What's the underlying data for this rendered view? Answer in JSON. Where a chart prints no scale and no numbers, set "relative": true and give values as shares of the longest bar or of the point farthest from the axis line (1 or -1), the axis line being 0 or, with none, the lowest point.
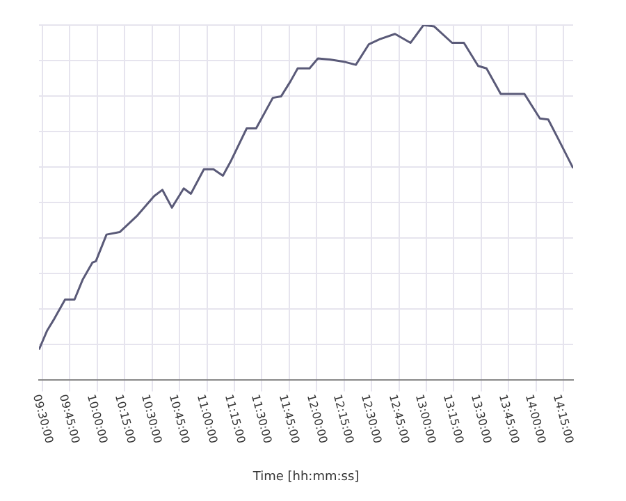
{
  "chart_data": {
    "type": "line",
    "xlabel": "Time [hh:mm:ss]",
    "relative": true,
    "grid": true,
    "marker": "none",
    "x": [
      9.468,
      9.543,
      9.608,
      9.706,
      9.792,
      9.868,
      9.955,
      9.987,
      10.084,
      10.204,
      10.366,
      10.517,
      10.593,
      10.68,
      10.788,
      10.853,
      10.972,
      11.059,
      11.145,
      11.221,
      11.362,
      11.448,
      11.6,
      11.675,
      11.762,
      11.827,
      11.935,
      12.011,
      12.119,
      12.26,
      12.357,
      12.476,
      12.574,
      12.714,
      12.855,
      12.974,
      13.072,
      13.234,
      13.342,
      13.472,
      13.548,
      13.678,
      13.894,
      14.035,
      14.111,
      14.208,
      14.338
    ],
    "series": [
      {
        "color": "#5a5a78",
        "values": [
          0.086,
          0.14,
          0.173,
          0.227,
          0.227,
          0.284,
          0.331,
          0.335,
          0.41,
          0.417,
          0.464,
          0.518,
          0.536,
          0.486,
          0.54,
          0.525,
          0.594,
          0.594,
          0.576,
          0.619,
          0.709,
          0.709,
          0.795,
          0.799,
          0.842,
          0.878,
          0.878,
          0.906,
          0.903,
          0.896,
          0.888,
          0.946,
          0.96,
          0.975,
          0.95,
          1,
          0.996,
          0.95,
          0.95,
          0.885,
          0.878,
          0.806,
          0.806,
          0.737,
          0.734,
          0.676,
          0.597
        ]
      }
    ],
    "xlim": [
      9.468,
      14.338
    ],
    "xticks": [
      {
        "value": 9.5,
        "label": "09:30:00"
      },
      {
        "value": 9.75,
        "label": "09:45:00"
      },
      {
        "value": 10,
        "label": "10:00:00"
      },
      {
        "value": 10.25,
        "label": "10:15:00"
      },
      {
        "value": 10.5,
        "label": "10:30:00"
      },
      {
        "value": 10.75,
        "label": "10:45:00"
      },
      {
        "value": 11,
        "label": "11:00:00"
      },
      {
        "value": 11.25,
        "label": "11:15:00"
      },
      {
        "value": 11.5,
        "label": "11:30:00"
      },
      {
        "value": 11.75,
        "label": "11:45:00"
      },
      {
        "value": 12,
        "label": "12:00:00"
      },
      {
        "value": 12.25,
        "label": "12:15:00"
      },
      {
        "value": 12.5,
        "label": "12:30:00"
      },
      {
        "value": 12.75,
        "label": "12:45:00"
      },
      {
        "value": 13,
        "label": "13:00:00"
      },
      {
        "value": 13.25,
        "label": "13:15:00"
      },
      {
        "value": 13.5,
        "label": "13:30:00"
      },
      {
        "value": 13.75,
        "label": "13:45:00"
      },
      {
        "value": 14,
        "label": "14:00:00"
      },
      {
        "value": 14.25,
        "label": "14:15:00"
      }
    ]
  }
}
